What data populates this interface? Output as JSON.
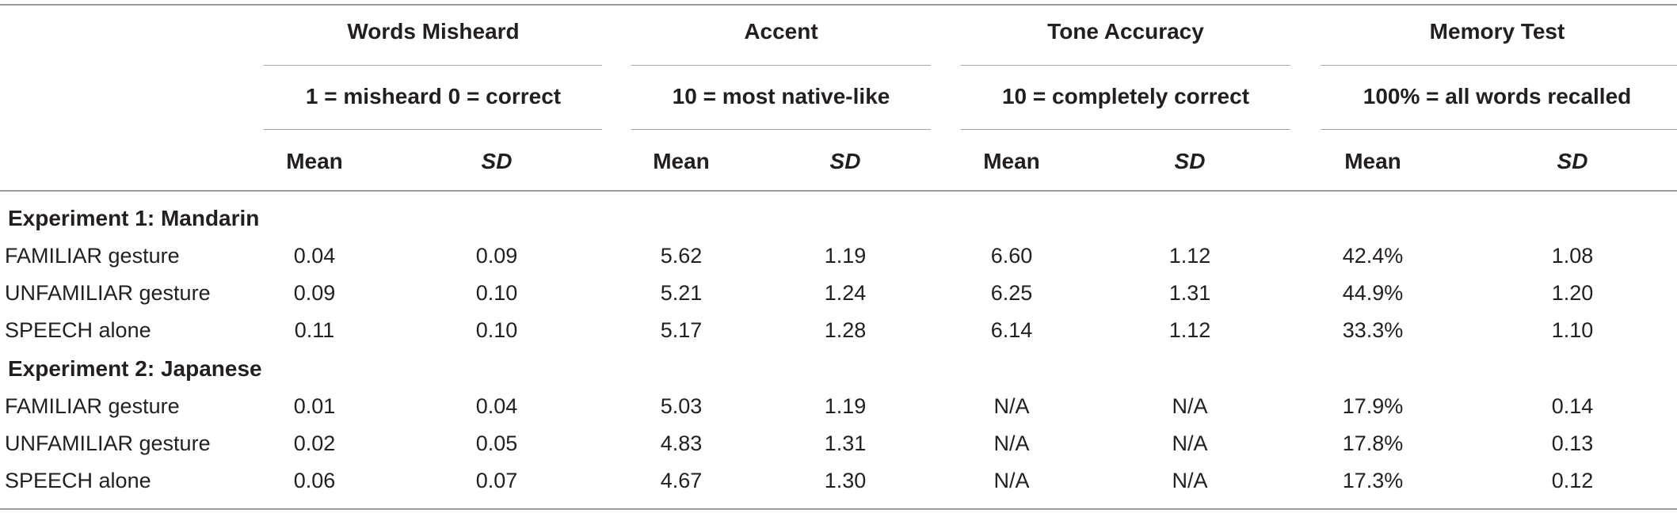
{
  "table": {
    "groups": [
      {
        "title": "Words Misheard",
        "subtitle": "1 = misheard 0 = correct"
      },
      {
        "title": "Accent",
        "subtitle": "10 = most native-like"
      },
      {
        "title": "Tone Accuracy",
        "subtitle": "10 = completely correct"
      },
      {
        "title": "Memory Test",
        "subtitle": "100% = all words recalled"
      }
    ],
    "column_headers": [
      "Mean",
      "SD",
      "Mean",
      "SD",
      "Mean",
      "SD",
      "Mean",
      "SD"
    ],
    "sections": [
      {
        "title": "Experiment 1: Mandarin",
        "rows": [
          {
            "label": "FAMILIAR gesture",
            "values": [
              "0.04",
              "0.09",
              "5.62",
              "1.19",
              "6.60",
              "1.12",
              "42.4%",
              "1.08"
            ]
          },
          {
            "label": "UNFAMILIAR gesture",
            "values": [
              "0.09",
              "0.10",
              "5.21",
              "1.24",
              "6.25",
              "1.31",
              "44.9%",
              "1.20"
            ]
          },
          {
            "label": "SPEECH alone",
            "values": [
              "0.11",
              "0.10",
              "5.17",
              "1.28",
              "6.14",
              "1.12",
              "33.3%",
              "1.10"
            ]
          }
        ]
      },
      {
        "title": "Experiment 2: Japanese",
        "rows": [
          {
            "label": "FAMILIAR gesture",
            "values": [
              "0.01",
              "0.04",
              "5.03",
              "1.19",
              "N/A",
              "N/A",
              "17.9%",
              "0.14"
            ]
          },
          {
            "label": "UNFAMILIAR gesture",
            "values": [
              "0.02",
              "0.05",
              "4.83",
              "1.31",
              "N/A",
              "N/A",
              "17.8%",
              "0.13"
            ]
          },
          {
            "label": "SPEECH alone",
            "values": [
              "0.06",
              "0.07",
              "4.67",
              "1.30",
              "N/A",
              "N/A",
              "17.3%",
              "0.12"
            ]
          }
        ]
      }
    ]
  }
}
